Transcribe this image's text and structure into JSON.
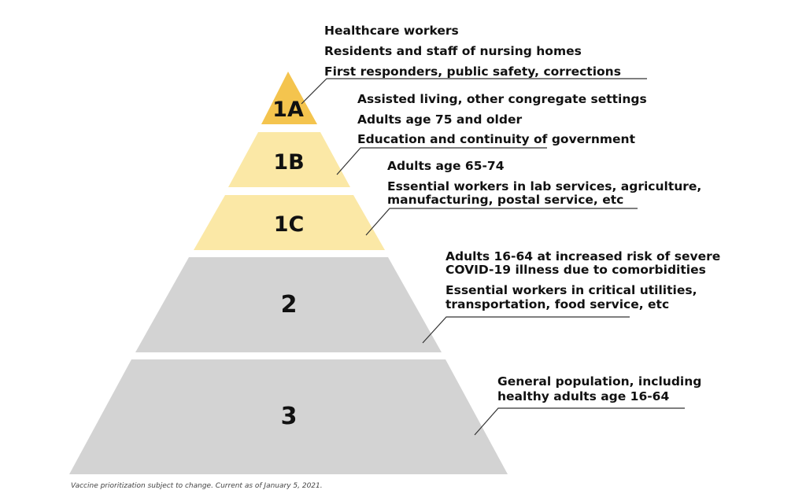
{
  "tiers": [
    {
      "id": "1A",
      "label": "1A",
      "color": "#F4C44E",
      "groups": [
        "Healthcare workers",
        "Residents and staff of nursing homes",
        "First responders, public safety, corrections"
      ]
    },
    {
      "id": "1B",
      "label": "1B",
      "color": "#FBE8A6",
      "groups": [
        "Assisted living, other congregate settings",
        "Adults age 75 and older",
        "Education and continuity of government"
      ]
    },
    {
      "id": "1C",
      "label": "1C",
      "color": "#FBE8A6",
      "groups": [
        "Adults age 65-74",
        "Essential workers in lab services, agriculture,",
        "manufacturing, postal service, etc"
      ]
    },
    {
      "id": "2",
      "label": "2",
      "color": "#D3D3D3",
      "groups": [
        "Adults 16-64 at increased risk of severe",
        "COVID-19 illness due to comorbidities",
        "Essential workers in critical utilities,",
        "transportation, food service, etc"
      ]
    },
    {
      "id": "3",
      "label": "3",
      "color": "#D3D3D3",
      "groups": [
        "General population, including",
        "healthy adults age 16-64"
      ]
    }
  ],
  "footnote": "Vaccine prioritization subject to change. Current as of January 5, 2021."
}
